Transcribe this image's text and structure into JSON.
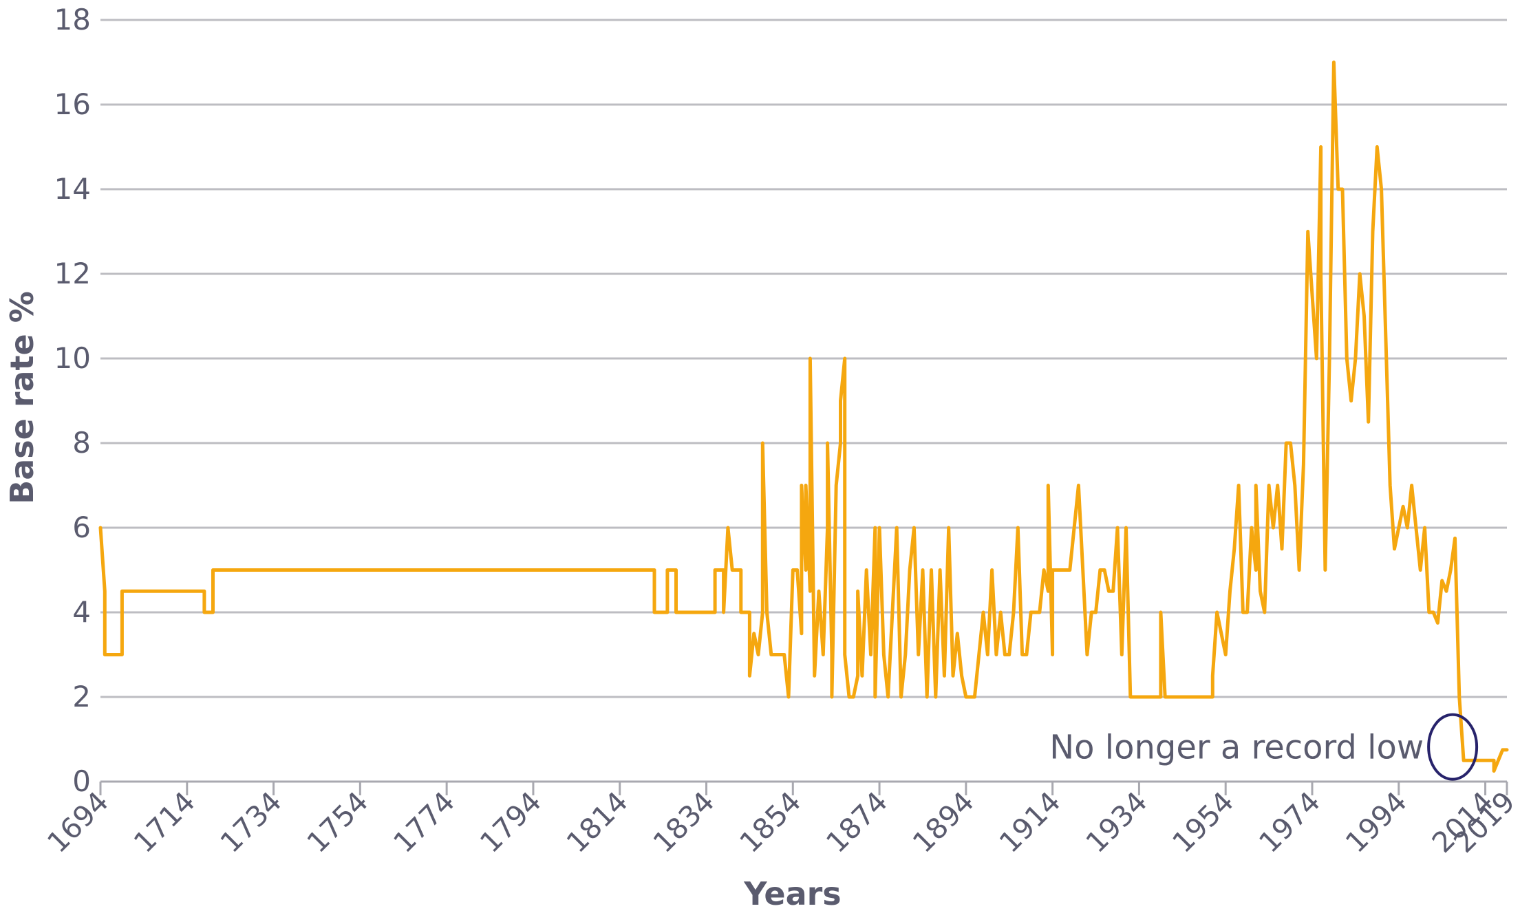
{
  "chart_data": {
    "type": "line",
    "title": "",
    "xlabel": "Years",
    "ylabel": "Base rate %",
    "xlim": [
      1694,
      2019
    ],
    "ylim": [
      0,
      18
    ],
    "x_ticks": [
      "1694",
      "1714",
      "1734",
      "1754",
      "1774",
      "1794",
      "1814",
      "1834",
      "1854",
      "1874",
      "1894",
      "1914",
      "1934",
      "1954",
      "1974",
      "1994",
      "2014",
      "2019"
    ],
    "y_ticks": [
      "0",
      "2",
      "4",
      "6",
      "8",
      "10",
      "12",
      "14",
      "16",
      "18"
    ],
    "grid": "horizontal",
    "legend": "none",
    "series": [
      {
        "color": "#f5a70f",
        "points": [
          [
            1694,
            6
          ],
          [
            1695,
            4.5
          ],
          [
            1695,
            3
          ],
          [
            1699,
            3
          ],
          [
            1699,
            4.5
          ],
          [
            1718,
            4.5
          ],
          [
            1718,
            4
          ],
          [
            1720,
            4
          ],
          [
            1720,
            5
          ],
          [
            1822,
            5
          ],
          [
            1822,
            4
          ],
          [
            1825,
            4
          ],
          [
            1825,
            5
          ],
          [
            1827,
            5
          ],
          [
            1827,
            4
          ],
          [
            1836,
            4
          ],
          [
            1836,
            5
          ],
          [
            1838,
            5
          ],
          [
            1838,
            4
          ],
          [
            1839,
            6
          ],
          [
            1840,
            5
          ],
          [
            1842,
            5
          ],
          [
            1842,
            4
          ],
          [
            1844,
            4
          ],
          [
            1844,
            2.5
          ],
          [
            1845,
            3.5
          ],
          [
            1846,
            3
          ],
          [
            1847,
            4
          ],
          [
            1847,
            8
          ],
          [
            1848,
            4
          ],
          [
            1849,
            3
          ],
          [
            1852,
            3
          ],
          [
            1853,
            2
          ],
          [
            1854,
            5
          ],
          [
            1855,
            5
          ],
          [
            1856,
            3.5
          ],
          [
            1856,
            7
          ],
          [
            1857,
            5
          ],
          [
            1857,
            7
          ],
          [
            1858,
            4.5
          ],
          [
            1858,
            10
          ],
          [
            1859,
            2.5
          ],
          [
            1860,
            4.5
          ],
          [
            1861,
            3
          ],
          [
            1862,
            6
          ],
          [
            1862,
            8
          ],
          [
            1863,
            3
          ],
          [
            1863,
            2
          ],
          [
            1864,
            7
          ],
          [
            1865,
            8
          ],
          [
            1865,
            9
          ],
          [
            1866,
            10
          ],
          [
            1866,
            3
          ],
          [
            1867,
            2
          ],
          [
            1868,
            2
          ],
          [
            1869,
            2.5
          ],
          [
            1869,
            4.5
          ],
          [
            1870,
            2.5
          ],
          [
            1871,
            5
          ],
          [
            1872,
            3
          ],
          [
            1873,
            6
          ],
          [
            1873,
            2
          ],
          [
            1874,
            6
          ],
          [
            1875,
            3
          ],
          [
            1876,
            2
          ],
          [
            1877,
            4
          ],
          [
            1878,
            6
          ],
          [
            1879,
            2
          ],
          [
            1880,
            3
          ],
          [
            1881,
            5
          ],
          [
            1882,
            6
          ],
          [
            1883,
            3
          ],
          [
            1884,
            5
          ],
          [
            1885,
            2
          ],
          [
            1886,
            5
          ],
          [
            1887,
            2
          ],
          [
            1888,
            5
          ],
          [
            1889,
            2.5
          ],
          [
            1890,
            6
          ],
          [
            1891,
            2.5
          ],
          [
            1892,
            3.5
          ],
          [
            1893,
            2.5
          ],
          [
            1894,
            2
          ],
          [
            1896,
            2
          ],
          [
            1897,
            3
          ],
          [
            1898,
            4
          ],
          [
            1899,
            3
          ],
          [
            1900,
            5
          ],
          [
            1901,
            3
          ],
          [
            1902,
            4
          ],
          [
            1903,
            3
          ],
          [
            1904,
            3
          ],
          [
            1905,
            4
          ],
          [
            1906,
            6
          ],
          [
            1907,
            3
          ],
          [
            1908,
            3
          ],
          [
            1909,
            4
          ],
          [
            1910,
            4
          ],
          [
            1911,
            4
          ],
          [
            1912,
            5
          ],
          [
            1913,
            4.5
          ],
          [
            1913,
            7
          ],
          [
            1914,
            3
          ],
          [
            1914,
            5
          ],
          [
            1916,
            5
          ],
          [
            1917,
            5
          ],
          [
            1918,
            5
          ],
          [
            1919,
            6
          ],
          [
            1920,
            7
          ],
          [
            1921,
            5
          ],
          [
            1922,
            3
          ],
          [
            1923,
            4
          ],
          [
            1924,
            4
          ],
          [
            1925,
            5
          ],
          [
            1926,
            5
          ],
          [
            1927,
            4.5
          ],
          [
            1928,
            4.5
          ],
          [
            1929,
            6
          ],
          [
            1930,
            3
          ],
          [
            1931,
            6
          ],
          [
            1932,
            2
          ],
          [
            1939,
            2
          ],
          [
            1939,
            4
          ],
          [
            1940,
            2
          ],
          [
            1951,
            2
          ],
          [
            1951,
            2.5
          ],
          [
            1952,
            4
          ],
          [
            1953,
            3.5
          ],
          [
            1954,
            3
          ],
          [
            1955,
            4.5
          ],
          [
            1956,
            5.5
          ],
          [
            1957,
            7
          ],
          [
            1958,
            4
          ],
          [
            1959,
            4
          ],
          [
            1960,
            6
          ],
          [
            1961,
            5
          ],
          [
            1961,
            7
          ],
          [
            1962,
            4.5
          ],
          [
            1963,
            4
          ],
          [
            1964,
            7
          ],
          [
            1965,
            6
          ],
          [
            1966,
            7
          ],
          [
            1967,
            5.5
          ],
          [
            1968,
            8
          ],
          [
            1969,
            8
          ],
          [
            1970,
            7
          ],
          [
            1971,
            5
          ],
          [
            1972,
            7.5
          ],
          [
            1973,
            13
          ],
          [
            1974,
            11.5
          ],
          [
            1975,
            10
          ],
          [
            1976,
            15
          ],
          [
            1976,
            12
          ],
          [
            1977,
            5
          ],
          [
            1978,
            10
          ],
          [
            1979,
            17
          ],
          [
            1980,
            14
          ],
          [
            1981,
            14
          ],
          [
            1982,
            10
          ],
          [
            1983,
            9
          ],
          [
            1984,
            10
          ],
          [
            1985,
            12
          ],
          [
            1986,
            11
          ],
          [
            1987,
            8.5
          ],
          [
            1988,
            13
          ],
          [
            1989,
            15
          ],
          [
            1990,
            14
          ],
          [
            1991,
            10.5
          ],
          [
            1992,
            7
          ],
          [
            1993,
            5.5
          ],
          [
            1994,
            6
          ],
          [
            1995,
            6.5
          ],
          [
            1996,
            6
          ],
          [
            1997,
            7
          ],
          [
            1998,
            6
          ],
          [
            1999,
            5
          ],
          [
            2000,
            6
          ],
          [
            2001,
            4
          ],
          [
            2002,
            4
          ],
          [
            2003,
            3.75
          ],
          [
            2004,
            4.75
          ],
          [
            2005,
            4.5
          ],
          [
            2006,
            5
          ],
          [
            2007,
            5.75
          ],
          [
            2008,
            2
          ],
          [
            2009,
            0.5
          ],
          [
            2016,
            0.5
          ],
          [
            2016,
            0.25
          ],
          [
            2017,
            0.5
          ],
          [
            2018,
            0.75
          ],
          [
            2019,
            0.75
          ]
        ]
      }
    ],
    "annotations": [
      {
        "text": "No longer a record low",
        "x": 2009,
        "y": 0.9
      }
    ]
  }
}
